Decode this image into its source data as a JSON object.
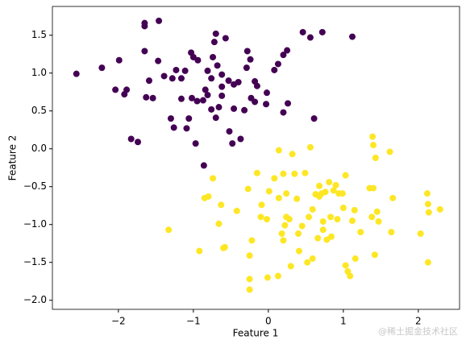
{
  "chart_data": {
    "type": "scatter",
    "x_label": "Feature 1",
    "y_label": "Feature 2",
    "xlim": [
      -2.88,
      2.55
    ],
    "ylim": [
      -2.12,
      1.88
    ],
    "xticks": [
      {
        "value": -2,
        "label": "−2"
      },
      {
        "value": -1,
        "label": "−1"
      },
      0,
      1,
      2
    ],
    "yticks": [
      {
        "value": -2,
        "label": "−2.0"
      },
      {
        "value": -1.5,
        "label": "−1.5"
      },
      {
        "value": -1,
        "label": "−1.0"
      },
      {
        "value": -0.5,
        "label": "−0.5"
      },
      {
        "value": 0,
        "label": "0.0"
      },
      0.5,
      {
        "value": 1,
        "label": "1.0"
      },
      1.5
    ],
    "series": [
      {
        "color": "#440154",
        "x": [
          -2.56,
          -2.22,
          -1.99,
          -2.04,
          -1.92,
          -1.89,
          -1.83,
          -1.74,
          -1.65,
          -1.65,
          -1.65,
          -1.46,
          -1.63,
          -1.54,
          -1.59,
          -1.47,
          -1.39,
          -1.3,
          -1.26,
          -1.28,
          -1.23,
          -1.16,
          -1.11,
          -1.06,
          -1.03,
          -1.0,
          -1.09,
          -0.97,
          -1.02,
          -0.94,
          -0.87,
          -0.86,
          -0.84,
          -0.81,
          -0.76,
          -0.72,
          -0.7,
          -0.74,
          -0.68,
          -0.62,
          -0.7,
          -0.66,
          -0.76,
          -0.57,
          -0.62,
          -0.53,
          -0.46,
          -0.4,
          -0.52,
          -0.46,
          -0.48,
          -0.37,
          -0.32,
          -0.29,
          -0.24,
          -0.28,
          -0.18,
          -0.15,
          -0.23,
          -0.18,
          -0.03,
          -0.02,
          0.08,
          0.13,
          0.2,
          0.26,
          0.25,
          0.2,
          0.46,
          0.56,
          0.61,
          0.72,
          1.12,
          -0.81,
          -0.95,
          -1.16,
          -0.62
        ],
        "y": [
          0.99,
          1.07,
          1.17,
          0.78,
          0.72,
          0.78,
          0.13,
          0.09,
          1.29,
          1.66,
          1.62,
          1.69,
          0.68,
          0.67,
          0.9,
          1.16,
          0.96,
          0.4,
          0.28,
          0.93,
          1.04,
          0.66,
          1.03,
          0.4,
          1.27,
          1.21,
          0.27,
          0.07,
          0.67,
          1.17,
          0.64,
          -0.22,
          0.78,
          1.03,
          0.93,
          1.41,
          1.52,
          1.21,
          1.1,
          0.82,
          0.41,
          0.55,
          0.52,
          1.46,
          0.98,
          0.9,
          0.85,
          0.88,
          0.23,
          0.53,
          0.07,
          0.13,
          0.51,
          1.07,
          1.18,
          1.29,
          0.89,
          0.83,
          0.67,
          0.62,
          0.59,
          0.74,
          1.04,
          1.12,
          1.24,
          0.6,
          1.3,
          0.48,
          1.54,
          1.47,
          0.4,
          1.54,
          1.48,
          0.71,
          0.63,
          0.93,
          0.7
        ]
      },
      {
        "color": "#fde725",
        "x": [
          -1.33,
          -0.92,
          -0.85,
          -0.8,
          -0.74,
          -0.66,
          -0.63,
          -0.6,
          -0.58,
          -0.42,
          -0.27,
          -0.22,
          -0.25,
          -0.25,
          -0.25,
          -0.15,
          -0.1,
          -0.02,
          -0.01,
          0.01,
          0.08,
          0.14,
          0.13,
          0.14,
          0.2,
          0.24,
          0.24,
          0.28,
          0.18,
          0.2,
          0.3,
          0.32,
          0.35,
          0.38,
          0.4,
          0.41,
          0.45,
          0.49,
          0.54,
          0.56,
          0.52,
          0.59,
          0.59,
          0.63,
          0.66,
          0.68,
          0.71,
          0.73,
          0.73,
          0.78,
          0.76,
          0.81,
          0.83,
          0.84,
          0.87,
          0.9,
          0.94,
          0.92,
          0.99,
          1.0,
          1.03,
          1.03,
          1.06,
          1.09,
          1.12,
          1.15,
          1.16,
          1.23,
          1.35,
          1.38,
          1.39,
          1.4,
          1.4,
          1.42,
          1.43,
          1.45,
          1.47,
          1.62,
          1.64,
          1.66,
          2.03,
          2.12,
          2.13,
          2.14,
          2.13,
          2.29,
          -0.09,
          0.22,
          0.68
        ],
        "y": [
          -1.07,
          -1.35,
          -0.65,
          -0.63,
          -0.39,
          -0.99,
          -0.74,
          -1.31,
          -1.3,
          -0.82,
          -0.53,
          -1.21,
          -1.41,
          -1.72,
          -1.86,
          -0.32,
          -0.9,
          -0.93,
          -1.7,
          -0.56,
          -0.39,
          -0.02,
          -1.68,
          -0.65,
          -0.33,
          -0.59,
          -0.9,
          -0.93,
          -1.12,
          -1.21,
          -1.55,
          -0.07,
          -0.33,
          -0.66,
          -1.12,
          -1.35,
          -1.02,
          -0.32,
          -0.9,
          0.02,
          -1.5,
          -1.45,
          -0.8,
          -0.6,
          -1.18,
          -0.49,
          -0.59,
          -0.96,
          -1.07,
          -1.2,
          -0.57,
          -0.44,
          -0.9,
          -1.16,
          -0.55,
          -0.48,
          -0.59,
          -0.93,
          -0.59,
          -0.78,
          -0.35,
          -1.54,
          -1.62,
          -1.68,
          -0.95,
          -0.81,
          -1.45,
          -1.1,
          -0.52,
          -0.9,
          0.16,
          0.05,
          -0.52,
          -1.4,
          -0.12,
          -0.83,
          -0.96,
          -0.04,
          -1.1,
          -0.65,
          -1.12,
          -0.59,
          -0.73,
          -0.84,
          -1.5,
          -0.8,
          -0.74,
          -1.01,
          -0.63
        ]
      }
    ]
  },
  "watermark": "@稀土掘金技术社区"
}
